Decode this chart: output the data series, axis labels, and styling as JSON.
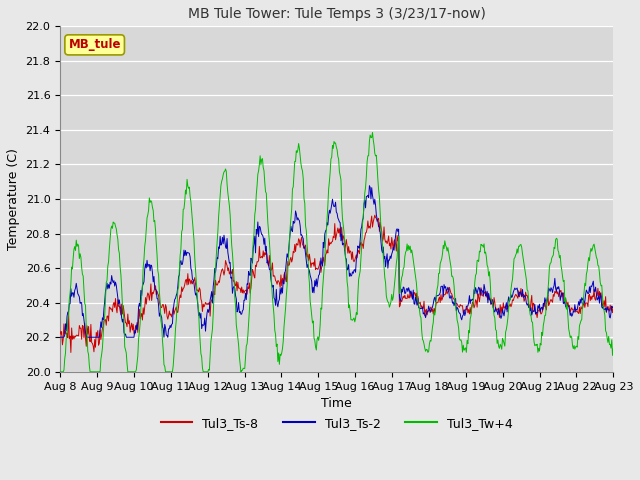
{
  "title": "MB Tule Tower: Tule Temps 3 (3/23/17-now)",
  "xlabel": "Time",
  "ylabel": "Temperature (C)",
  "ylim": [
    20.0,
    22.0
  ],
  "yticks": [
    20.0,
    20.2,
    20.4,
    20.6,
    20.8,
    21.0,
    21.2,
    21.4,
    21.6,
    21.8,
    22.0
  ],
  "x_labels": [
    "Aug 8",
    "Aug 9",
    "Aug 10",
    "Aug 11",
    "Aug 12",
    "Aug 13",
    "Aug 14",
    "Aug 15",
    "Aug 16",
    "Aug 17",
    "Aug 18",
    "Aug 19",
    "Aug 20",
    "Aug 21",
    "Aug 22",
    "Aug 23"
  ],
  "colors": {
    "red": "#cc0000",
    "blue": "#0000bb",
    "green": "#00bb00"
  },
  "legend_label_box": "MB_tule",
  "legend_entries": [
    "Tul3_Ts-8",
    "Tul3_Ts-2",
    "Tul3_Tw+4"
  ],
  "title_fontsize": 10,
  "axis_fontsize": 9,
  "tick_fontsize": 8,
  "fig_facecolor": "#e8e8e8",
  "plot_facecolor": "#d8d8d8"
}
